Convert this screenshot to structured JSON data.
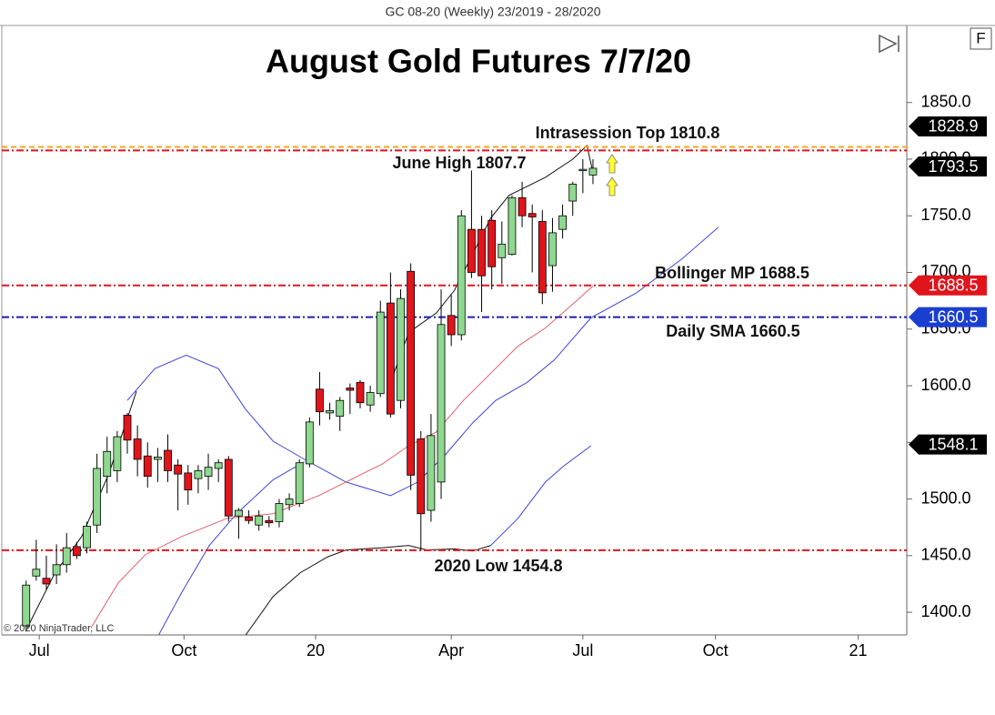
{
  "chart_data": {
    "type": "candlestick",
    "header": "GC 08-20 (Weekly)  23/2019 - 28/2020",
    "title": "August Gold Futures 7/7/20",
    "copyright": "© 2020 NinjaTrader, LLC",
    "button": "F",
    "up_color": "#8fd88f",
    "down_color": "#e0151b",
    "x": [
      0,
      1,
      2,
      3,
      4,
      5,
      6,
      7,
      8,
      9,
      10,
      11,
      12,
      13,
      14,
      15,
      16,
      17,
      18,
      19,
      20,
      21,
      22,
      23,
      24,
      25,
      26,
      27,
      28,
      29,
      30,
      31,
      32,
      33,
      34,
      35,
      36,
      37,
      38,
      39,
      40,
      41,
      42,
      43,
      44,
      45,
      46,
      47,
      48,
      49,
      50,
      51,
      52,
      53,
      54,
      55,
      56
    ],
    "open": [
      1388,
      1432,
      1430,
      1433,
      1442,
      1458,
      1457,
      1477,
      1520,
      1525,
      1574,
      1553,
      1538,
      1535,
      1543,
      1530,
      1523,
      1518,
      1520,
      1527,
      1535,
      1485,
      1484,
      1477,
      1481,
      1480,
      1495,
      1496,
      1531,
      1597,
      1576,
      1573,
      1598,
      1603,
      1583,
      1593,
      1673,
      1587,
      1701,
      1553,
      1490,
      1515,
      1662,
      1645,
      1738,
      1738,
      1746,
      1713,
      1716,
      1766,
      1752,
      1745,
      1706,
      1738,
      1763,
      1790,
      1786
    ],
    "high": [
      1428,
      1464,
      1450,
      1460,
      1470,
      1462,
      1480,
      1540,
      1555,
      1560,
      1576,
      1565,
      1550,
      1545,
      1557,
      1535,
      1530,
      1530,
      1540,
      1535,
      1538,
      1492,
      1490,
      1490,
      1485,
      1500,
      1505,
      1535,
      1572,
      1612,
      1585,
      1590,
      1602,
      1605,
      1600,
      1675,
      1700,
      1685,
      1708,
      1560,
      1575,
      1685,
      1680,
      1755,
      1790,
      1750,
      1755,
      1745,
      1768,
      1780,
      1760,
      1755,
      1748,
      1760,
      1780,
      1800,
      1800
    ],
    "low": [
      1383,
      1428,
      1420,
      1425,
      1435,
      1447,
      1452,
      1470,
      1505,
      1515,
      1540,
      1520,
      1510,
      1515,
      1515,
      1490,
      1495,
      1505,
      1508,
      1515,
      1480,
      1465,
      1478,
      1472,
      1475,
      1475,
      1490,
      1493,
      1528,
      1565,
      1570,
      1560,
      1575,
      1580,
      1577,
      1590,
      1572,
      1580,
      1508,
      1455,
      1480,
      1500,
      1635,
      1640,
      1695,
      1665,
      1685,
      1690,
      1715,
      1740,
      1700,
      1672,
      1683,
      1730,
      1750,
      1770,
      1778
    ],
    "close": [
      1424,
      1438,
      1425,
      1442,
      1457,
      1450,
      1476,
      1527,
      1542,
      1555,
      1552,
      1535,
      1520,
      1537,
      1525,
      1522,
      1508,
      1525,
      1528,
      1532,
      1485,
      1490,
      1481,
      1485,
      1479,
      1496,
      1500,
      1532,
      1568,
      1577,
      1578,
      1587,
      1596,
      1585,
      1594,
      1665,
      1575,
      1677,
      1521,
      1487,
      1556,
      1654,
      1645,
      1750,
      1700,
      1697,
      1705,
      1725,
      1766,
      1750,
      1749,
      1682,
      1735,
      1750,
      1778,
      1791,
      1792
    ],
    "lines": [
      {
        "color": "#111111",
        "x": [
          0.1,
          2.8,
          5.5,
          8.2,
          10.9,
          null,
          36,
          37.8,
          40.5,
          42.3,
          44.1,
          45.9,
          47.7,
          51.3,
          54,
          55.4,
          56
        ],
        "values": [
          1386,
          1434,
          1467,
          1523,
          1595,
          null,
          1603,
          1647,
          1664,
          1684,
          1716,
          1748,
          1768,
          1784,
          1800,
          1812,
          1788
        ]
      },
      {
        "color": "#111111",
        "x": [
          21.7,
          24.4,
          27.1,
          29.8,
          31.6,
          35.2,
          37.8,
          39.6,
          42.3,
          44.1,
          45.9
        ],
        "values": [
          1380,
          1414,
          1435,
          1449,
          1455,
          1457,
          1459,
          1455,
          1456,
          1454,
          1459
        ]
      },
      {
        "color": "#3c46d8",
        "x": [
          45.9,
          48.6,
          51.3,
          53.1,
          55.8
        ],
        "values": [
          1459,
          1483,
          1515,
          1529,
          1547
        ]
      },
      {
        "color": "#3c46d8",
        "x": [
          10,
          12.7,
          15.8,
          19,
          21.7,
          24.4,
          27.5,
          31.6,
          36,
          38.7,
          41.4,
          44.1,
          46.4,
          49.5,
          52.2,
          55.8,
          60.3,
          64.8,
          68.4
        ],
        "values": [
          1587,
          1615,
          1627,
          1615,
          1579,
          1551,
          1535,
          1515,
          1503,
          1515,
          1539,
          1567,
          1587,
          1603,
          1623,
          1660,
          1682,
          1712,
          1740
        ]
      },
      {
        "color": "#3c46d8",
        "x": [
          13.1,
          15.4,
          18.1,
          20.8,
          24.4,
          27.5
        ],
        "values": [
          1380,
          1418,
          1459,
          1487,
          1517,
          1533
        ]
      },
      {
        "color": "#e0606a",
        "x": [
          6.4,
          9.1,
          11.8,
          15.4,
          19.9,
          24.4,
          28.9,
          31.6,
          35.2,
          37.8,
          40.5,
          43.2,
          45.9,
          48.6,
          51.3,
          54,
          56
        ],
        "values": [
          1386,
          1426,
          1451,
          1467,
          1483,
          1487,
          1503,
          1515,
          1531,
          1547,
          1559,
          1587,
          1611,
          1635,
          1651,
          1672,
          1688
        ]
      }
    ],
    "levels": [
      {
        "label": "Intrasession Top 1810.8",
        "value": 1810.8,
        "color": "#f5a623",
        "style": "dash"
      },
      {
        "label": "June High 1807.7",
        "value": 1807.7,
        "color": "#e0151b",
        "style": "dashdot"
      },
      {
        "label": "Bollinger MP 1688.5",
        "value": 1688.5,
        "color": "#e0151b",
        "style": "dashdot"
      },
      {
        "label": "Daily SMA 1660.5",
        "value": 1660.5,
        "color": "#1f1fae",
        "style": "dashdot"
      },
      {
        "label": "2020 Low 1454.8",
        "value": 1454.8,
        "color": "#e0151b",
        "style": "dashdot"
      }
    ],
    "price_markers": [
      {
        "value": 1828.9,
        "color": "#000000"
      },
      {
        "value": 1793.5,
        "color": "#000000"
      },
      {
        "value": 1688.5,
        "color": "#e0151b"
      },
      {
        "value": 1660.5,
        "color": "#1a3fd0"
      },
      {
        "value": 1548.1,
        "color": "#000000"
      }
    ],
    "xlim": [
      -2.4,
      87
    ],
    "xticks": [
      {
        "value": 1.3,
        "label": "Jul"
      },
      {
        "value": 15.6,
        "label": "Oct"
      },
      {
        "value": 28.6,
        "label": "20"
      },
      {
        "value": 42,
        "label": "Apr"
      },
      {
        "value": 55,
        "label": "Jul"
      },
      {
        "value": 68.1,
        "label": "Oct"
      },
      {
        "value": 82.2,
        "label": "21"
      }
    ],
    "ylim": [
      1380,
      1918
    ],
    "yticks": [
      {
        "value": 1400,
        "label": "1400.0"
      },
      {
        "value": 1450,
        "label": "1450.0"
      },
      {
        "value": 1500,
        "label": "1500.0"
      },
      {
        "value": 1550,
        "label": "1550.0"
      },
      {
        "value": 1600,
        "label": "1600.0"
      },
      {
        "value": 1650,
        "label": "1650.0"
      },
      {
        "value": 1700,
        "label": "1700.0"
      },
      {
        "value": 1750,
        "label": "1750.0"
      },
      {
        "value": 1800,
        "label": "1800.0"
      },
      {
        "value": 1850,
        "label": "1850.0"
      }
    ]
  }
}
